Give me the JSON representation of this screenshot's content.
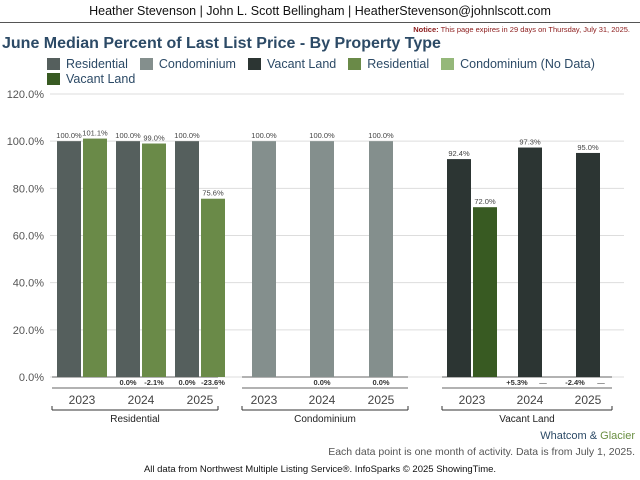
{
  "header": {
    "text": "Heather Stevenson | John L. Scott Bellingham | HeatherStevenson@johnlscott.com"
  },
  "notice": {
    "label": "Notice:",
    "text": "This page expires in 29 days on Thursday, July 31, 2025."
  },
  "chart_data": {
    "type": "bar",
    "title": "June Median Percent of Last List Price - By Property Type",
    "ylim": [
      0,
      120
    ],
    "yticks": [
      "0.0%",
      "20.0%",
      "40.0%",
      "60.0%",
      "80.0%",
      "100.0%",
      "120.0%"
    ],
    "grid": true,
    "legend_position": "top",
    "legend": [
      {
        "name": "Residential",
        "color": "#555f5d"
      },
      {
        "name": "Condominium",
        "color": "#848f8d"
      },
      {
        "name": "Vacant Land",
        "color": "#2c3533"
      },
      {
        "name": "Residential",
        "color": "#6a8a48"
      },
      {
        "name": "Condominium (No Data)",
        "color": "#95b87a"
      },
      {
        "name": "Vacant Land",
        "color": "#385a22"
      }
    ],
    "groups": [
      {
        "name": "Residential",
        "years": [
          {
            "year": "2023",
            "bars": [
              {
                "legend": 0,
                "value": 100.0,
                "label": "100.0%"
              },
              {
                "legend": 3,
                "value": 101.1,
                "label": "101.1%"
              }
            ],
            "changes": []
          },
          {
            "year": "2024",
            "bars": [
              {
                "legend": 0,
                "value": 100.0,
                "label": "100.0%"
              },
              {
                "legend": 3,
                "value": 99.0,
                "label": "99.0%"
              }
            ],
            "changes": [
              "0.0%",
              "-2.1%"
            ]
          },
          {
            "year": "2025",
            "bars": [
              {
                "legend": 0,
                "value": 100.0,
                "label": "100.0%"
              },
              {
                "legend": 3,
                "value": 75.6,
                "label": "75.6%"
              }
            ],
            "changes": [
              "0.0%",
              "-23.6%"
            ]
          }
        ]
      },
      {
        "name": "Condominium",
        "years": [
          {
            "year": "2023",
            "bars": [
              {
                "legend": 1,
                "value": 100.0,
                "label": "100.0%"
              }
            ],
            "changes": []
          },
          {
            "year": "2024",
            "bars": [
              {
                "legend": 1,
                "value": 100.0,
                "label": "100.0%"
              }
            ],
            "changes": [
              "0.0%"
            ]
          },
          {
            "year": "2025",
            "bars": [
              {
                "legend": 1,
                "value": 100.0,
                "label": "100.0%"
              }
            ],
            "changes": [
              "0.0%"
            ]
          }
        ]
      },
      {
        "name": "Vacant Land",
        "years": [
          {
            "year": "2023",
            "bars": [
              {
                "legend": 2,
                "value": 92.4,
                "label": "92.4%"
              },
              {
                "legend": 5,
                "value": 72.0,
                "label": "72.0%"
              }
            ],
            "changes": []
          },
          {
            "year": "2024",
            "bars": [
              {
                "legend": 2,
                "value": 97.3,
                "label": "97.3%"
              }
            ],
            "changes": [
              "+5.3%",
              "—"
            ]
          },
          {
            "year": "2025",
            "bars": [
              {
                "legend": 2,
                "value": 95.0,
                "label": "95.0%"
              }
            ],
            "changes": [
              "-2.4%",
              "—"
            ]
          }
        ]
      }
    ]
  },
  "footer": {
    "brand_part1": "Whatcom",
    "brand_amp": " & ",
    "brand_part2": "Glacier",
    "note": "Each data point is one month of activity. Data is from July 1, 2025.",
    "source": "All data from Northwest Multiple Listing Service®. InfoSparks © 2025 ShowingTime."
  }
}
